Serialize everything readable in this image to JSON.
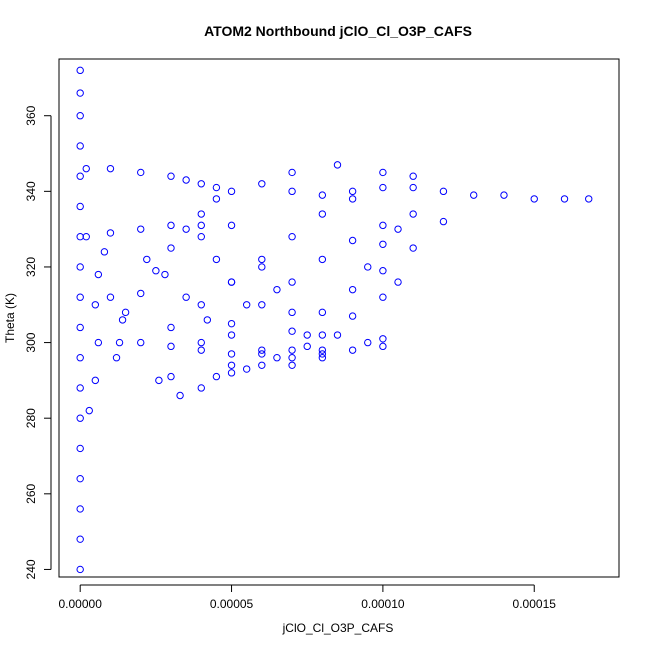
{
  "chart_data": {
    "type": "scatter",
    "title": "ATOM2 Northbound jClO_Cl_O3P_CAFS",
    "xlabel": "jClO_Cl_O3P_CAFS",
    "ylabel": "Theta (K)",
    "xlim": [
      -7e-06,
      0.000178
    ],
    "ylim": [
      238,
      375
    ],
    "x_ticks": [
      0,
      5e-05,
      0.0001,
      0.00015
    ],
    "x_tick_labels": [
      "0.00000",
      "0.00005",
      "0.00010",
      "0.00015"
    ],
    "y_ticks": [
      240,
      260,
      280,
      300,
      320,
      340,
      360
    ],
    "y_tick_labels": [
      "240",
      "260",
      "280",
      "300",
      "320",
      "340",
      "360"
    ],
    "marker": "open-circle",
    "color": "#0000ff",
    "series": [
      {
        "values": [
          {
            "x": 0.0,
            "y": 240
          },
          {
            "x": 0.0,
            "y": 248
          },
          {
            "x": 0.0,
            "y": 256
          },
          {
            "x": 0.0,
            "y": 264
          },
          {
            "x": 0.0,
            "y": 272
          },
          {
            "x": 0.0,
            "y": 280
          },
          {
            "x": 0.0,
            "y": 288
          },
          {
            "x": 0.0,
            "y": 296
          },
          {
            "x": 0.0,
            "y": 304
          },
          {
            "x": 0.0,
            "y": 312
          },
          {
            "x": 0.0,
            "y": 320
          },
          {
            "x": 0.0,
            "y": 328
          },
          {
            "x": 0.0,
            "y": 336
          },
          {
            "x": 0.0,
            "y": 344
          },
          {
            "x": 0.0,
            "y": 352
          },
          {
            "x": 0.0,
            "y": 360
          },
          {
            "x": 0.0,
            "y": 366
          },
          {
            "x": 0.0,
            "y": 372
          },
          {
            "x": 3e-06,
            "y": 282
          },
          {
            "x": 5e-06,
            "y": 290
          },
          {
            "x": 6e-06,
            "y": 300
          },
          {
            "x": 5e-06,
            "y": 310
          },
          {
            "x": 6e-06,
            "y": 318
          },
          {
            "x": 8e-06,
            "y": 324
          },
          {
            "x": 1e-05,
            "y": 312
          },
          {
            "x": 1.2e-05,
            "y": 296
          },
          {
            "x": 1.4e-05,
            "y": 306
          },
          {
            "x": 2e-06,
            "y": 346
          },
          {
            "x": 1e-05,
            "y": 346
          },
          {
            "x": 2e-05,
            "y": 345
          },
          {
            "x": 3e-05,
            "y": 344
          },
          {
            "x": 3.5e-05,
            "y": 343
          },
          {
            "x": 4e-05,
            "y": 342
          },
          {
            "x": 4.5e-05,
            "y": 341
          },
          {
            "x": 2e-06,
            "y": 328
          },
          {
            "x": 1e-05,
            "y": 329
          },
          {
            "x": 2e-05,
            "y": 330
          },
          {
            "x": 3e-05,
            "y": 331
          },
          {
            "x": 4e-05,
            "y": 331
          },
          {
            "x": 5e-05,
            "y": 331
          },
          {
            "x": 6e-05,
            "y": 342
          },
          {
            "x": 7e-05,
            "y": 340
          },
          {
            "x": 8e-05,
            "y": 339
          },
          {
            "x": 9e-05,
            "y": 340
          },
          {
            "x": 0.0001,
            "y": 341
          },
          {
            "x": 0.00011,
            "y": 341
          },
          {
            "x": 0.00012,
            "y": 340
          },
          {
            "x": 0.00013,
            "y": 339
          },
          {
            "x": 0.00014,
            "y": 339
          },
          {
            "x": 0.00015,
            "y": 338
          },
          {
            "x": 0.00016,
            "y": 338
          },
          {
            "x": 0.000168,
            "y": 338
          },
          {
            "x": 7e-05,
            "y": 345
          },
          {
            "x": 8.5e-05,
            "y": 347
          },
          {
            "x": 0.0001,
            "y": 345
          },
          {
            "x": 0.00011,
            "y": 344
          },
          {
            "x": 1.3e-05,
            "y": 300
          },
          {
            "x": 2e-05,
            "y": 300
          },
          {
            "x": 3e-05,
            "y": 299
          },
          {
            "x": 4e-05,
            "y": 298
          },
          {
            "x": 5e-05,
            "y": 297
          },
          {
            "x": 6e-05,
            "y": 297
          },
          {
            "x": 7e-05,
            "y": 296
          },
          {
            "x": 8e-05,
            "y": 297
          },
          {
            "x": 9e-05,
            "y": 298
          },
          {
            "x": 0.0001,
            "y": 299
          },
          {
            "x": 3.3e-05,
            "y": 286
          },
          {
            "x": 4e-05,
            "y": 288
          },
          {
            "x": 5e-05,
            "y": 292
          },
          {
            "x": 6e-05,
            "y": 294
          },
          {
            "x": 7e-05,
            "y": 294
          },
          {
            "x": 8e-05,
            "y": 296
          },
          {
            "x": 2.6e-05,
            "y": 290
          },
          {
            "x": 3e-05,
            "y": 291
          },
          {
            "x": 1.5e-05,
            "y": 308
          },
          {
            "x": 2e-05,
            "y": 313
          },
          {
            "x": 2.5e-05,
            "y": 319
          },
          {
            "x": 3e-05,
            "y": 325
          },
          {
            "x": 3.5e-05,
            "y": 330
          },
          {
            "x": 4e-05,
            "y": 334
          },
          {
            "x": 4.5e-05,
            "y": 338
          },
          {
            "x": 5e-05,
            "y": 340
          },
          {
            "x": 3e-05,
            "y": 304
          },
          {
            "x": 4e-05,
            "y": 310
          },
          {
            "x": 5e-05,
            "y": 316
          },
          {
            "x": 6e-05,
            "y": 322
          },
          {
            "x": 7e-05,
            "y": 328
          },
          {
            "x": 8e-05,
            "y": 334
          },
          {
            "x": 9e-05,
            "y": 338
          },
          {
            "x": 4e-05,
            "y": 300
          },
          {
            "x": 5e-05,
            "y": 305
          },
          {
            "x": 6e-05,
            "y": 310
          },
          {
            "x": 7e-05,
            "y": 316
          },
          {
            "x": 8e-05,
            "y": 322
          },
          {
            "x": 9e-05,
            "y": 327
          },
          {
            "x": 0.0001,
            "y": 331
          },
          {
            "x": 0.00011,
            "y": 334
          },
          {
            "x": 5e-05,
            "y": 294
          },
          {
            "x": 6e-05,
            "y": 298
          },
          {
            "x": 7e-05,
            "y": 303
          },
          {
            "x": 8e-05,
            "y": 308
          },
          {
            "x": 9e-05,
            "y": 314
          },
          {
            "x": 0.0001,
            "y": 319
          },
          {
            "x": 0.00011,
            "y": 325
          },
          {
            "x": 0.00012,
            "y": 332
          },
          {
            "x": 7e-05,
            "y": 298
          },
          {
            "x": 8e-05,
            "y": 302
          },
          {
            "x": 9e-05,
            "y": 307
          },
          {
            "x": 0.0001,
            "y": 312
          },
          {
            "x": 0.000105,
            "y": 316
          },
          {
            "x": 2.2e-05,
            "y": 322
          },
          {
            "x": 2.8e-05,
            "y": 318
          },
          {
            "x": 3.5e-05,
            "y": 312
          },
          {
            "x": 4.2e-05,
            "y": 306
          },
          {
            "x": 5e-05,
            "y": 302
          },
          {
            "x": 6e-05,
            "y": 320
          },
          {
            "x": 6.5e-05,
            "y": 314
          },
          {
            "x": 7e-05,
            "y": 308
          },
          {
            "x": 7.5e-05,
            "y": 302
          },
          {
            "x": 8e-05,
            "y": 298
          },
          {
            "x": 4e-05,
            "y": 328
          },
          {
            "x": 4.5e-05,
            "y": 322
          },
          {
            "x": 5e-05,
            "y": 316
          },
          {
            "x": 5.5e-05,
            "y": 310
          },
          {
            "x": 9.5e-05,
            "y": 320
          },
          {
            "x": 0.0001,
            "y": 326
          },
          {
            "x": 0.000105,
            "y": 330
          },
          {
            "x": 4.5e-05,
            "y": 291
          },
          {
            "x": 5.5e-05,
            "y": 293
          },
          {
            "x": 6.5e-05,
            "y": 296
          },
          {
            "x": 7.5e-05,
            "y": 299
          },
          {
            "x": 8.5e-05,
            "y": 302
          },
          {
            "x": 9.5e-05,
            "y": 300
          },
          {
            "x": 0.0001,
            "y": 301
          }
        ]
      }
    ]
  }
}
